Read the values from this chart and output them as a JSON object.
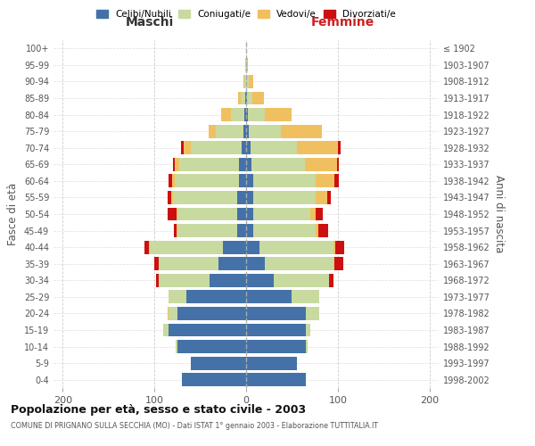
{
  "age_groups": [
    "0-4",
    "5-9",
    "10-14",
    "15-19",
    "20-24",
    "25-29",
    "30-34",
    "35-39",
    "40-44",
    "45-49",
    "50-54",
    "55-59",
    "60-64",
    "65-69",
    "70-74",
    "75-79",
    "80-84",
    "85-89",
    "90-94",
    "95-99",
    "100+"
  ],
  "birth_years": [
    "1998-2002",
    "1993-1997",
    "1988-1992",
    "1983-1987",
    "1978-1982",
    "1973-1977",
    "1968-1972",
    "1963-1967",
    "1958-1962",
    "1953-1957",
    "1948-1952",
    "1943-1947",
    "1938-1942",
    "1933-1937",
    "1928-1932",
    "1923-1927",
    "1918-1922",
    "1913-1917",
    "1908-1912",
    "1903-1907",
    "≤ 1902"
  ],
  "maschi": {
    "celibi": [
      70,
      60,
      75,
      85,
      75,
      65,
      40,
      30,
      25,
      10,
      10,
      10,
      8,
      8,
      5,
      3,
      2,
      1,
      0,
      0,
      0
    ],
    "coniugati": [
      0,
      0,
      2,
      5,
      10,
      20,
      55,
      65,
      80,
      65,
      65,
      70,
      70,
      65,
      55,
      30,
      15,
      5,
      2,
      1,
      0
    ],
    "vedovi": [
      0,
      0,
      0,
      0,
      1,
      0,
      0,
      0,
      1,
      1,
      1,
      2,
      3,
      5,
      8,
      8,
      10,
      3,
      1,
      0,
      0
    ],
    "divorziati": [
      0,
      0,
      0,
      0,
      0,
      0,
      3,
      5,
      5,
      3,
      10,
      4,
      4,
      2,
      3,
      0,
      0,
      0,
      0,
      0,
      0
    ]
  },
  "femmine": {
    "nubili": [
      65,
      55,
      65,
      65,
      65,
      50,
      30,
      20,
      15,
      8,
      8,
      8,
      8,
      6,
      5,
      3,
      2,
      1,
      0,
      0,
      0
    ],
    "coniugate": [
      0,
      0,
      2,
      5,
      15,
      30,
      60,
      75,
      80,
      68,
      62,
      68,
      68,
      58,
      50,
      35,
      18,
      6,
      3,
      1,
      0
    ],
    "vedove": [
      0,
      0,
      0,
      0,
      0,
      0,
      0,
      1,
      2,
      3,
      6,
      12,
      20,
      35,
      45,
      45,
      30,
      12,
      5,
      1,
      0
    ],
    "divorziate": [
      0,
      0,
      0,
      0,
      0,
      0,
      5,
      10,
      10,
      10,
      8,
      4,
      5,
      2,
      3,
      0,
      0,
      0,
      0,
      0,
      0
    ]
  },
  "colors": {
    "celibi": "#4472a8",
    "coniugati": "#c8daa0",
    "vedovi": "#f0c060",
    "divorziati": "#cc1010"
  },
  "xlim": 210,
  "title": "Popolazione per età, sesso e stato civile - 2003",
  "subtitle": "COMUNE DI PRIGNANO SULLA SECCHIA (MO) - Dati ISTAT 1° gennaio 2003 - Elaborazione TUTTITALIA.IT",
  "xlabel_left": "Maschi",
  "xlabel_right": "Femmine",
  "ylabel_left": "Fasce di età",
  "ylabel_right": "Anni di nascita"
}
